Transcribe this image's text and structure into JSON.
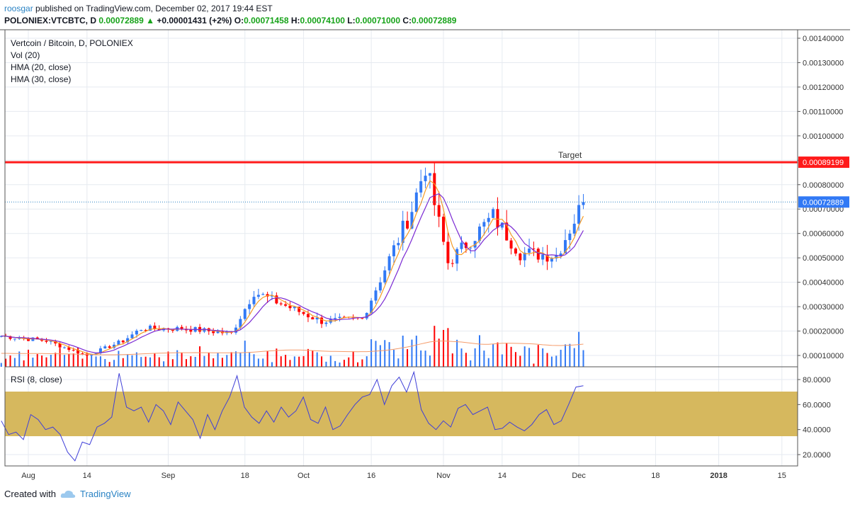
{
  "header": {
    "user": "roosgar",
    "published": "published on TradingView.com, December 02, 2017 19:44 EST",
    "symbol": "POLONIEX:VTCBTC, D",
    "last": "0.00072889",
    "change_arrow": "▲",
    "change": "+0.00001431 (+2%)",
    "o_label": "O:",
    "o_value": "0.00071458",
    "h_label": "H:",
    "h_value": "0.00074100",
    "l_label": "L:",
    "l_value": "0.00071000",
    "c_label": "C:",
    "c_value": "0.00072889"
  },
  "legend": {
    "line1": "Vertcoin / Bitcoin, D, POLONIEX",
    "line2": "Vol (20)",
    "line3": "HMA (20, close)",
    "line4": "HMA (30, close)"
  },
  "rsi_legend": "RSI (8, close)",
  "footer": {
    "created_with": "Created with",
    "brand": "TradingView",
    "brand_icon": "tradingview-cloud-icon"
  },
  "colors": {
    "up": "#3179f5",
    "down": "#ff0000",
    "target": "#ff1a1a",
    "hma20": "#f59b24",
    "hma30": "#7b2ad3",
    "rsi": "#3f3fd8",
    "rsi_band": "#d6b85e",
    "vol_ma": "#f59b6a",
    "price_line": "#2a83c4"
  },
  "chart_data": [
    {
      "type": "candlestick",
      "title": "Vertcoin / Bitcoin, D, POLONIEX",
      "y_axis_ticks": [
        "0.00010000",
        "0.00020000",
        "0.00030000",
        "0.00040000",
        "0.00050000",
        "0.00060000",
        "0.00070000",
        "0.00080000",
        "0.00090000",
        "0.00100000",
        "0.00110000",
        "0.00120000",
        "0.00130000",
        "0.00140000"
      ],
      "ylim": [
        2e-05,
        0.00144
      ],
      "x_axis_ticks": [
        "Aug",
        "14",
        "Sep",
        "18",
        "Oct",
        "16",
        "Nov",
        "14",
        "Dec",
        "18",
        "2018",
        "15"
      ],
      "price_label": "0.00072889",
      "horizontal_line": {
        "name": "Target",
        "value": 0.00089199,
        "label": "0.00089199"
      },
      "series": [
        {
          "name": "HMA (20, close)",
          "kind": "line"
        },
        {
          "name": "HMA (30, close)",
          "kind": "line"
        },
        {
          "name": "Vol (20)",
          "kind": "volume"
        }
      ],
      "close_estimates": [
        {
          "date": "2017-07-26",
          "close": 0.00018
        },
        {
          "date": "2017-08-05",
          "close": 0.00016
        },
        {
          "date": "2017-08-14",
          "close": 0.0001
        },
        {
          "date": "2017-08-22",
          "close": 0.00016
        },
        {
          "date": "2017-08-26",
          "close": 0.00021
        },
        {
          "date": "2017-09-05",
          "close": 0.00021
        },
        {
          "date": "2017-09-15",
          "close": 0.00019
        },
        {
          "date": "2017-09-20",
          "close": 0.00036
        },
        {
          "date": "2017-10-05",
          "close": 0.00024
        },
        {
          "date": "2017-10-14",
          "close": 0.00025
        },
        {
          "date": "2017-10-25",
          "close": 0.0007
        },
        {
          "date": "2017-10-28",
          "close": 0.00088
        },
        {
          "date": "2017-11-02",
          "close": 0.00048
        },
        {
          "date": "2017-11-12",
          "close": 0.00067
        },
        {
          "date": "2017-11-18",
          "close": 0.00052
        },
        {
          "date": "2017-11-26",
          "close": 0.00051
        },
        {
          "date": "2017-12-02",
          "close": 0.00072889
        }
      ]
    },
    {
      "type": "line",
      "title": "RSI (8, close)",
      "y_axis_ticks": [
        "20.0000",
        "40.0000",
        "60.0000",
        "80.0000"
      ],
      "ylim": [
        10,
        90
      ],
      "band": [
        35,
        70
      ],
      "values": [
        47,
        36,
        38,
        32,
        52,
        48,
        40,
        42,
        36,
        22,
        15,
        30,
        28,
        42,
        45,
        50,
        85,
        58,
        55,
        58,
        46,
        60,
        55,
        44,
        62,
        55,
        48,
        33,
        52,
        40,
        55,
        66,
        83,
        58,
        50,
        45,
        55,
        46,
        58,
        50,
        55,
        66,
        48,
        45,
        58,
        40,
        43,
        52,
        60,
        66,
        68,
        80,
        60,
        75,
        82,
        70,
        86,
        56,
        45,
        40,
        47,
        42,
        57,
        60,
        52,
        55,
        58,
        40,
        41,
        46,
        42,
        39,
        44,
        52,
        56,
        44,
        47,
        60,
        74,
        75
      ]
    }
  ]
}
